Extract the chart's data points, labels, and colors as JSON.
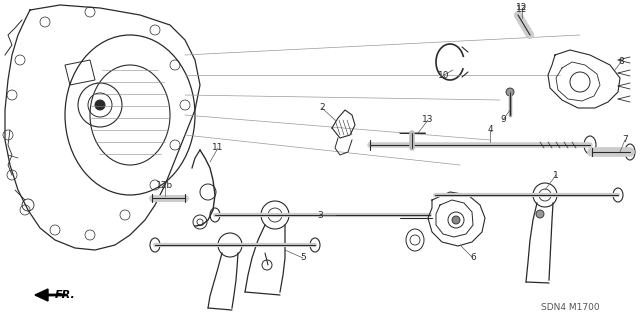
{
  "background_color": "#ffffff",
  "diagram_code": "SDN4 M1700",
  "fr_label": "FR.",
  "lw_thin": 0.5,
  "lw_med": 0.8,
  "lw_thick": 1.2,
  "gray": "#2a2a2a",
  "light": "#999999"
}
